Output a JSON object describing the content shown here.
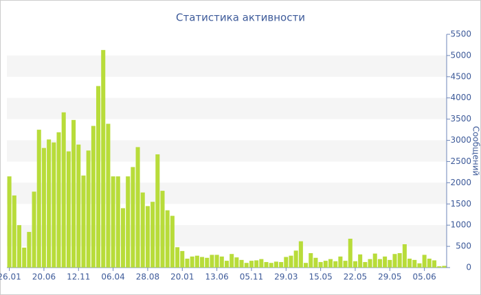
{
  "chart_data": {
    "type": "bar",
    "title": "Статистика активности",
    "y_label": "Сообщений",
    "categories": [
      "26.01",
      null,
      null,
      null,
      null,
      null,
      null,
      "20.06",
      null,
      null,
      null,
      null,
      null,
      null,
      "12.11",
      null,
      null,
      null,
      null,
      null,
      null,
      "06.04",
      null,
      null,
      null,
      null,
      null,
      null,
      "28.08",
      null,
      null,
      null,
      null,
      null,
      null,
      "20.01",
      null,
      null,
      null,
      null,
      null,
      null,
      "13.06",
      null,
      null,
      null,
      null,
      null,
      null,
      "05.11",
      null,
      null,
      null,
      null,
      null,
      null,
      "29.03",
      null,
      null,
      null,
      null,
      null,
      null,
      "15.05",
      null,
      null,
      null,
      null,
      null,
      null,
      "22.05",
      null,
      null,
      null,
      null,
      null,
      null,
      "29.05",
      null,
      null,
      null,
      null,
      null,
      null,
      "05.06",
      null,
      null,
      null,
      null
    ],
    "values": [
      2150,
      1700,
      1000,
      470,
      840,
      1790,
      3250,
      2820,
      3020,
      2950,
      3190,
      3660,
      2740,
      3480,
      2900,
      2170,
      2760,
      3340,
      4280,
      5130,
      3390,
      2150,
      2150,
      1400,
      2150,
      2370,
      2840,
      1770,
      1450,
      1550,
      2670,
      1810,
      1350,
      1220,
      480,
      390,
      210,
      260,
      280,
      250,
      230,
      300,
      300,
      260,
      160,
      320,
      240,
      180,
      110,
      160,
      170,
      200,
      130,
      110,
      140,
      130,
      250,
      280,
      400,
      620,
      110,
      340,
      230,
      130,
      160,
      200,
      150,
      260,
      160,
      680,
      150,
      310,
      130,
      200,
      330,
      200,
      260,
      180,
      320,
      340,
      550,
      210,
      180,
      100,
      300,
      210,
      170,
      30,
      40
    ],
    "color": "#b8dc3a",
    "ylim": [
      0,
      5500
    ],
    "yticks": [
      0,
      500,
      1000,
      1500,
      2000,
      2500,
      3000,
      3500,
      4000,
      4500,
      5000,
      5500
    ],
    "grid": "banded"
  }
}
